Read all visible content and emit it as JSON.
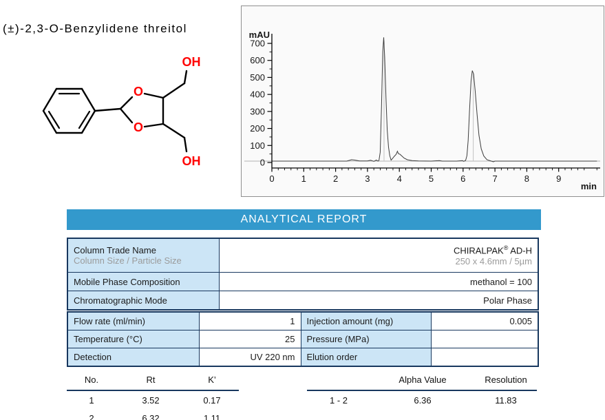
{
  "title": "(±)-2,3-O-Benzylidene threitol",
  "molecule": {
    "name": "(±)-2,3-O-Benzylidene threitol",
    "o_label": "O",
    "oh_label": "OH"
  },
  "report": {
    "banner": "ANALYTICAL REPORT"
  },
  "colors": {
    "banner_blue": "#3399cc",
    "cell_blue": "#cce5f6",
    "border_navy": "#17375e",
    "structure_red": "#ff0000",
    "gray_text": "#9b9b9b"
  },
  "chart_data": {
    "type": "line",
    "title": "",
    "ylabel": "mAU",
    "xlabel": "min",
    "xlim": [
      0,
      10.3
    ],
    "ylim": [
      -35,
      760
    ],
    "xticks": [
      0,
      1,
      2,
      3,
      4,
      5,
      6,
      7,
      8,
      9
    ],
    "yticks": [
      0,
      100,
      200,
      300,
      400,
      500,
      600,
      700
    ],
    "x_minor_step": 0.2,
    "y_minor_step": 50,
    "grid": false,
    "baseline_mau": 8,
    "peaks": [
      {
        "no": 1,
        "rt": 3.52,
        "apex_mau": 735
      },
      {
        "no": 2,
        "rt": 6.32,
        "apex_mau": 540
      }
    ],
    "trace": [
      [
        0,
        8
      ],
      [
        0.5,
        8
      ],
      [
        1,
        8
      ],
      [
        1.5,
        8
      ],
      [
        2,
        8
      ],
      [
        2.35,
        8
      ],
      [
        2.5,
        16
      ],
      [
        2.6,
        14
      ],
      [
        2.75,
        9
      ],
      [
        3.0,
        9
      ],
      [
        3.1,
        13
      ],
      [
        3.2,
        7
      ],
      [
        3.28,
        14
      ],
      [
        3.33,
        8
      ],
      [
        3.36,
        12
      ],
      [
        3.4,
        60
      ],
      [
        3.44,
        330
      ],
      [
        3.48,
        650
      ],
      [
        3.51,
        735
      ],
      [
        3.54,
        620
      ],
      [
        3.58,
        380
      ],
      [
        3.62,
        190
      ],
      [
        3.66,
        90
      ],
      [
        3.7,
        40
      ],
      [
        3.74,
        14
      ],
      [
        3.78,
        22
      ],
      [
        3.84,
        36
      ],
      [
        3.9,
        48
      ],
      [
        3.94,
        66
      ],
      [
        3.97,
        52
      ],
      [
        4.02,
        48
      ],
      [
        4.08,
        38
      ],
      [
        4.15,
        26
      ],
      [
        4.25,
        16
      ],
      [
        4.4,
        11
      ],
      [
        4.6,
        9
      ],
      [
        5.0,
        8
      ],
      [
        5.25,
        11
      ],
      [
        5.35,
        8
      ],
      [
        5.8,
        8
      ],
      [
        5.98,
        11
      ],
      [
        6.02,
        7
      ],
      [
        6.08,
        12
      ],
      [
        6.12,
        40
      ],
      [
        6.16,
        130
      ],
      [
        6.2,
        300
      ],
      [
        6.25,
        480
      ],
      [
        6.29,
        540
      ],
      [
        6.33,
        520
      ],
      [
        6.38,
        420
      ],
      [
        6.44,
        280
      ],
      [
        6.5,
        160
      ],
      [
        6.57,
        80
      ],
      [
        6.65,
        38
      ],
      [
        6.75,
        16
      ],
      [
        6.85,
        10
      ],
      [
        6.95,
        4
      ],
      [
        7.0,
        8
      ],
      [
        7.3,
        8
      ],
      [
        8,
        8
      ],
      [
        9,
        8
      ],
      [
        10.2,
        8
      ]
    ]
  },
  "column_table": {
    "rows": [
      {
        "label": "Column Trade Name",
        "sublabel": "Column Size / Particle Size",
        "value_prefix": "CHIRALPAK",
        "value_sup": "®",
        "value_suffix": " AD-H",
        "subvalue": "250 x 4.6mm / 5µm"
      },
      {
        "label": "Mobile Phase Composition",
        "value": "methanol = 100"
      },
      {
        "label": "Chromatographic Mode",
        "value": "Polar Phase"
      }
    ]
  },
  "conditions_table": {
    "rows": [
      {
        "label1": "Flow rate (ml/min)",
        "value1": "1",
        "label2": "Injection amount (mg)",
        "value2": "0.005"
      },
      {
        "label1": "Temperature (°C)",
        "value1": "25",
        "label2": "Pressure (MPa)",
        "value2": ""
      },
      {
        "label1": "Detection",
        "value1": "UV 220 nm",
        "label2": "Elution order",
        "value2": ""
      }
    ]
  },
  "peaks_table": {
    "headers": [
      "No.",
      "Rt",
      "K’"
    ],
    "rows": [
      [
        "1",
        "3.52",
        "0.17"
      ],
      [
        "2",
        "6.32",
        "1.11"
      ]
    ],
    "right_headers": [
      "",
      "Alpha Value",
      "Resolution"
    ],
    "right_rows": [
      [
        "1 - 2",
        "6.36",
        "11.83"
      ]
    ]
  }
}
